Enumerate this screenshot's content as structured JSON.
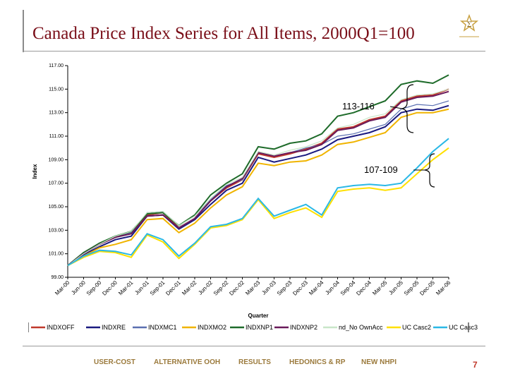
{
  "title": "Canada Price Index Series for All Items, 2000Q1=100",
  "page_number": "7",
  "nav_items": [
    "USER-COST",
    "ALTERNATIVE OOH",
    "RESULTS",
    "HEDONICS & RP",
    "NEW NHPI"
  ],
  "chart_data": {
    "type": "line",
    "ylabel": "Index",
    "xlabel": "Quarter",
    "ylim": [
      99,
      117
    ],
    "yticks": [
      "99.00",
      "101.00",
      "103.00",
      "105.00",
      "107.00",
      "109.00",
      "111.00",
      "113.00",
      "115.00",
      "117.00"
    ],
    "categories": [
      "Mar-00",
      "Jun-00",
      "Sep-00",
      "Dec-00",
      "Mar-01",
      "Jun-01",
      "Sep-01",
      "Dec-01",
      "Mar-02",
      "Jun-02",
      "Sep-02",
      "Dec-02",
      "Mar-03",
      "Jun-03",
      "Sep-03",
      "Dec-03",
      "Mar-04",
      "Jun-04",
      "Sep-04",
      "Dec-04",
      "Mar-05",
      "Jun-05",
      "Sep-05",
      "Dec-05",
      "Mar-06"
    ],
    "annotations": [
      "113-116",
      "107-109"
    ],
    "series": [
      {
        "name": "INDXOFF",
        "color": "#c0392b",
        "values": [
          100.0,
          101.0,
          101.8,
          102.4,
          102.8,
          104.3,
          104.5,
          103.2,
          104.0,
          105.5,
          106.6,
          107.3,
          109.5,
          109.2,
          109.5,
          109.9,
          110.4,
          111.6,
          111.8,
          112.4,
          112.7,
          114.0,
          114.4,
          114.5,
          115.0
        ]
      },
      {
        "name": "INDXRE",
        "color": "#1a1a80",
        "values": [
          100.0,
          100.9,
          101.6,
          102.2,
          102.5,
          104.2,
          104.3,
          103.1,
          103.9,
          105.2,
          106.4,
          107.0,
          109.2,
          108.8,
          109.1,
          109.4,
          109.9,
          110.7,
          111.0,
          111.3,
          111.8,
          113.0,
          113.3,
          113.2,
          113.6
        ]
      },
      {
        "name": "INDXMC1",
        "color": "#5a6fb0",
        "values": [
          100.0,
          101.0,
          101.8,
          102.5,
          102.8,
          104.5,
          104.6,
          103.4,
          104.2,
          105.6,
          106.8,
          107.3,
          109.6,
          109.3,
          109.6,
          110.0,
          110.3,
          111.0,
          111.2,
          111.6,
          112.0,
          113.3,
          113.7,
          113.6,
          114.0
        ]
      },
      {
        "name": "INDXMO2",
        "color": "#f0b400",
        "values": [
          100.0,
          100.8,
          101.5,
          101.8,
          102.2,
          103.9,
          104.0,
          102.8,
          103.6,
          104.9,
          106.0,
          106.7,
          108.7,
          108.5,
          108.8,
          108.9,
          109.4,
          110.3,
          110.5,
          110.9,
          111.3,
          112.6,
          113.0,
          113.0,
          113.3
        ]
      },
      {
        "name": "INDXNP1",
        "color": "#1e6b2a",
        "values": [
          100.0,
          101.1,
          101.9,
          102.5,
          102.9,
          104.4,
          104.5,
          103.4,
          104.3,
          106.0,
          107.0,
          107.8,
          110.1,
          109.9,
          110.4,
          110.6,
          111.2,
          112.7,
          113.0,
          113.5,
          114.0,
          115.4,
          115.7,
          115.5,
          116.2
        ]
      },
      {
        "name": "INDXNP2",
        "color": "#6a1a5a",
        "values": [
          100.0,
          101.0,
          101.8,
          102.4,
          102.7,
          104.2,
          104.3,
          103.2,
          104.0,
          105.5,
          106.7,
          107.4,
          109.6,
          109.3,
          109.6,
          109.8,
          110.3,
          111.5,
          111.7,
          112.3,
          112.6,
          113.9,
          114.3,
          114.4,
          114.8
        ]
      },
      {
        "name": "nd_No OwnAcc",
        "color": "#c8e6c8",
        "values": [
          100.0,
          101.0,
          101.8,
          102.5,
          102.9,
          104.5,
          104.6,
          103.4,
          104.2,
          105.7,
          106.9,
          107.5,
          109.7,
          109.4,
          109.8,
          110.1,
          110.6,
          111.7,
          112.0,
          112.6,
          112.9,
          114.1,
          114.5,
          114.6,
          115.0
        ]
      },
      {
        "name": "UC Casc2",
        "color": "#ffe000",
        "values": [
          100.0,
          100.7,
          101.2,
          101.1,
          100.7,
          102.6,
          102.0,
          100.6,
          101.8,
          103.2,
          103.4,
          103.9,
          105.6,
          104.0,
          104.5,
          104.9,
          104.1,
          106.3,
          106.5,
          106.6,
          106.4,
          106.6,
          107.8,
          109.0,
          110.0
        ]
      },
      {
        "name": "UC Casc3",
        "color": "#2ab8e6",
        "values": [
          100.0,
          100.8,
          101.3,
          101.2,
          100.9,
          102.7,
          102.2,
          100.8,
          101.9,
          103.3,
          103.5,
          104.0,
          105.7,
          104.2,
          104.7,
          105.2,
          104.3,
          106.6,
          106.8,
          106.9,
          106.8,
          107.0,
          108.3,
          109.7,
          110.8
        ]
      }
    ]
  }
}
